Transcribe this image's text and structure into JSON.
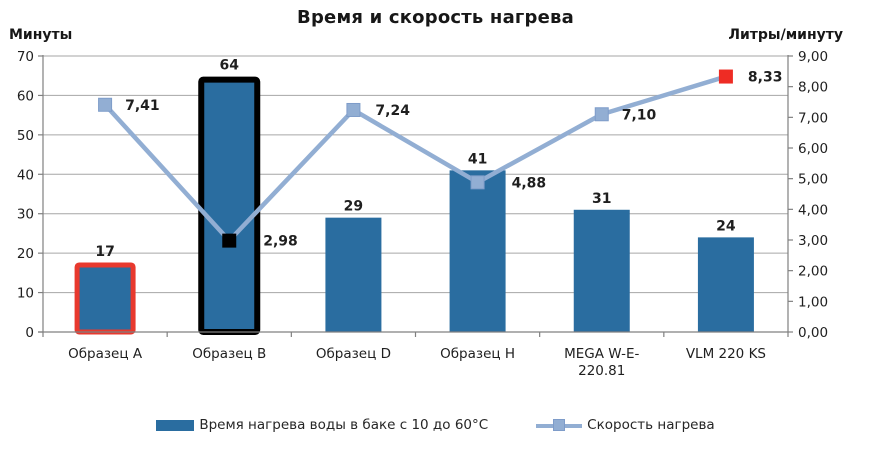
{
  "title": "Время и скорость нагрева",
  "axes": {
    "left": {
      "unit_label": "Минуты",
      "ticks": [
        "0",
        "10",
        "20",
        "30",
        "40",
        "50",
        "60",
        "70"
      ]
    },
    "right": {
      "unit_label": "Литры/минуту",
      "ticks": [
        "0,00",
        "1,00",
        "2,00",
        "3,00",
        "4,00",
        "5,00",
        "6,00",
        "7,00",
        "8,00",
        "9,00"
      ]
    }
  },
  "legend": {
    "bar_label": "Время нагрева воды в баке с 10 до 60°С",
    "line_label": "Скорость нагрева"
  },
  "colors": {
    "bar_fill": "#2a6da0",
    "line": "#92aed3",
    "marker_border": "#7e9cc9",
    "highlight_red": "#e8392e",
    "highlight_black": "#000000",
    "gridline": "#a6a6a6",
    "axis": "#808080",
    "text": "#1f1f1f"
  },
  "chart_data": {
    "type": "bar+line",
    "title": "Время и скорость нагрева",
    "categories": [
      "Образец A",
      "Образец B",
      "Образец D",
      "Образец H",
      "MEGA W-E-\n220.81",
      "VLM 220 KS"
    ],
    "left_axis": {
      "label": "Минуты",
      "min": 0,
      "max": 70,
      "step": 10
    },
    "right_axis": {
      "label": "Литры/минуту",
      "min": 0,
      "max": 9,
      "step": 1
    },
    "grid": true,
    "legend_position": "bottom",
    "series": [
      {
        "name": "Время нагрева воды в баке с 10 до 60°С",
        "type": "bar",
        "axis": "left",
        "values": [
          17,
          64,
          29,
          41,
          31,
          24
        ],
        "labels": [
          "17",
          "64",
          "29",
          "41",
          "31",
          "24"
        ],
        "outline_overrides": [
          {
            "color": "#e8392e",
            "width": 5
          },
          {
            "color": "#000000",
            "width": 6
          },
          null,
          null,
          null,
          null
        ]
      },
      {
        "name": "Скорость нагрева",
        "type": "line",
        "axis": "right",
        "values": [
          7.41,
          2.98,
          7.24,
          4.88,
          7.1,
          8.33
        ],
        "labels": [
          "7,41",
          "2,98",
          "7,24",
          "4,88",
          "7,10",
          "8,33"
        ],
        "marker": "square",
        "marker_overrides": [
          null,
          "#000000",
          null,
          null,
          null,
          "#ee2c24"
        ]
      }
    ]
  }
}
